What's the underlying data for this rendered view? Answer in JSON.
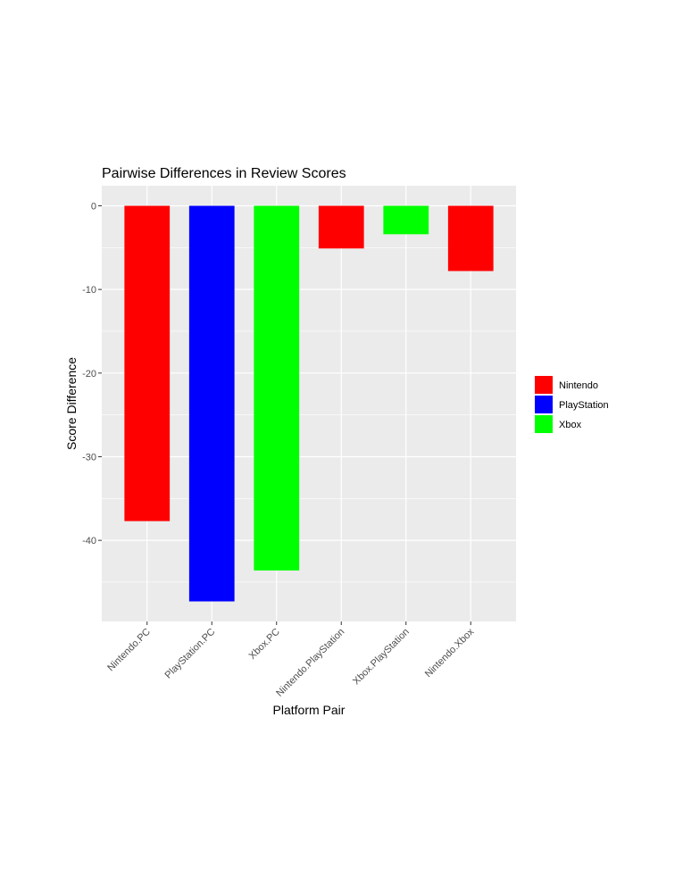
{
  "chart_data": {
    "type": "bar",
    "title": "Pairwise Differences in Review Scores",
    "xlabel": "Platform Pair",
    "ylabel": "Score Difference",
    "categories": [
      "Nintendo.PC",
      "PlayStation.PC",
      "Xbox.PC",
      "Nintendo.PlayStation",
      "Xbox.PlayStation",
      "Nintendo.Xbox"
    ],
    "values": [
      -37.7,
      -47.3,
      -43.6,
      -5.1,
      -3.4,
      -7.8
    ],
    "bar_groups": [
      "Nintendo",
      "PlayStation",
      "Xbox",
      "Nintendo",
      "Xbox",
      "Nintendo"
    ],
    "yticks": [
      0,
      -10,
      -20,
      -30,
      -40
    ],
    "ytick_labels": [
      "0",
      "-10",
      "-20",
      "-30",
      "-40"
    ],
    "ylim": [
      -49.7,
      2.4
    ],
    "grid": true,
    "legend": {
      "position": "right",
      "entries": [
        {
          "label": "Nintendo",
          "color": "#ff0000"
        },
        {
          "label": "PlayStation",
          "color": "#0000ff"
        },
        {
          "label": "Xbox",
          "color": "#00ff00"
        }
      ]
    }
  }
}
